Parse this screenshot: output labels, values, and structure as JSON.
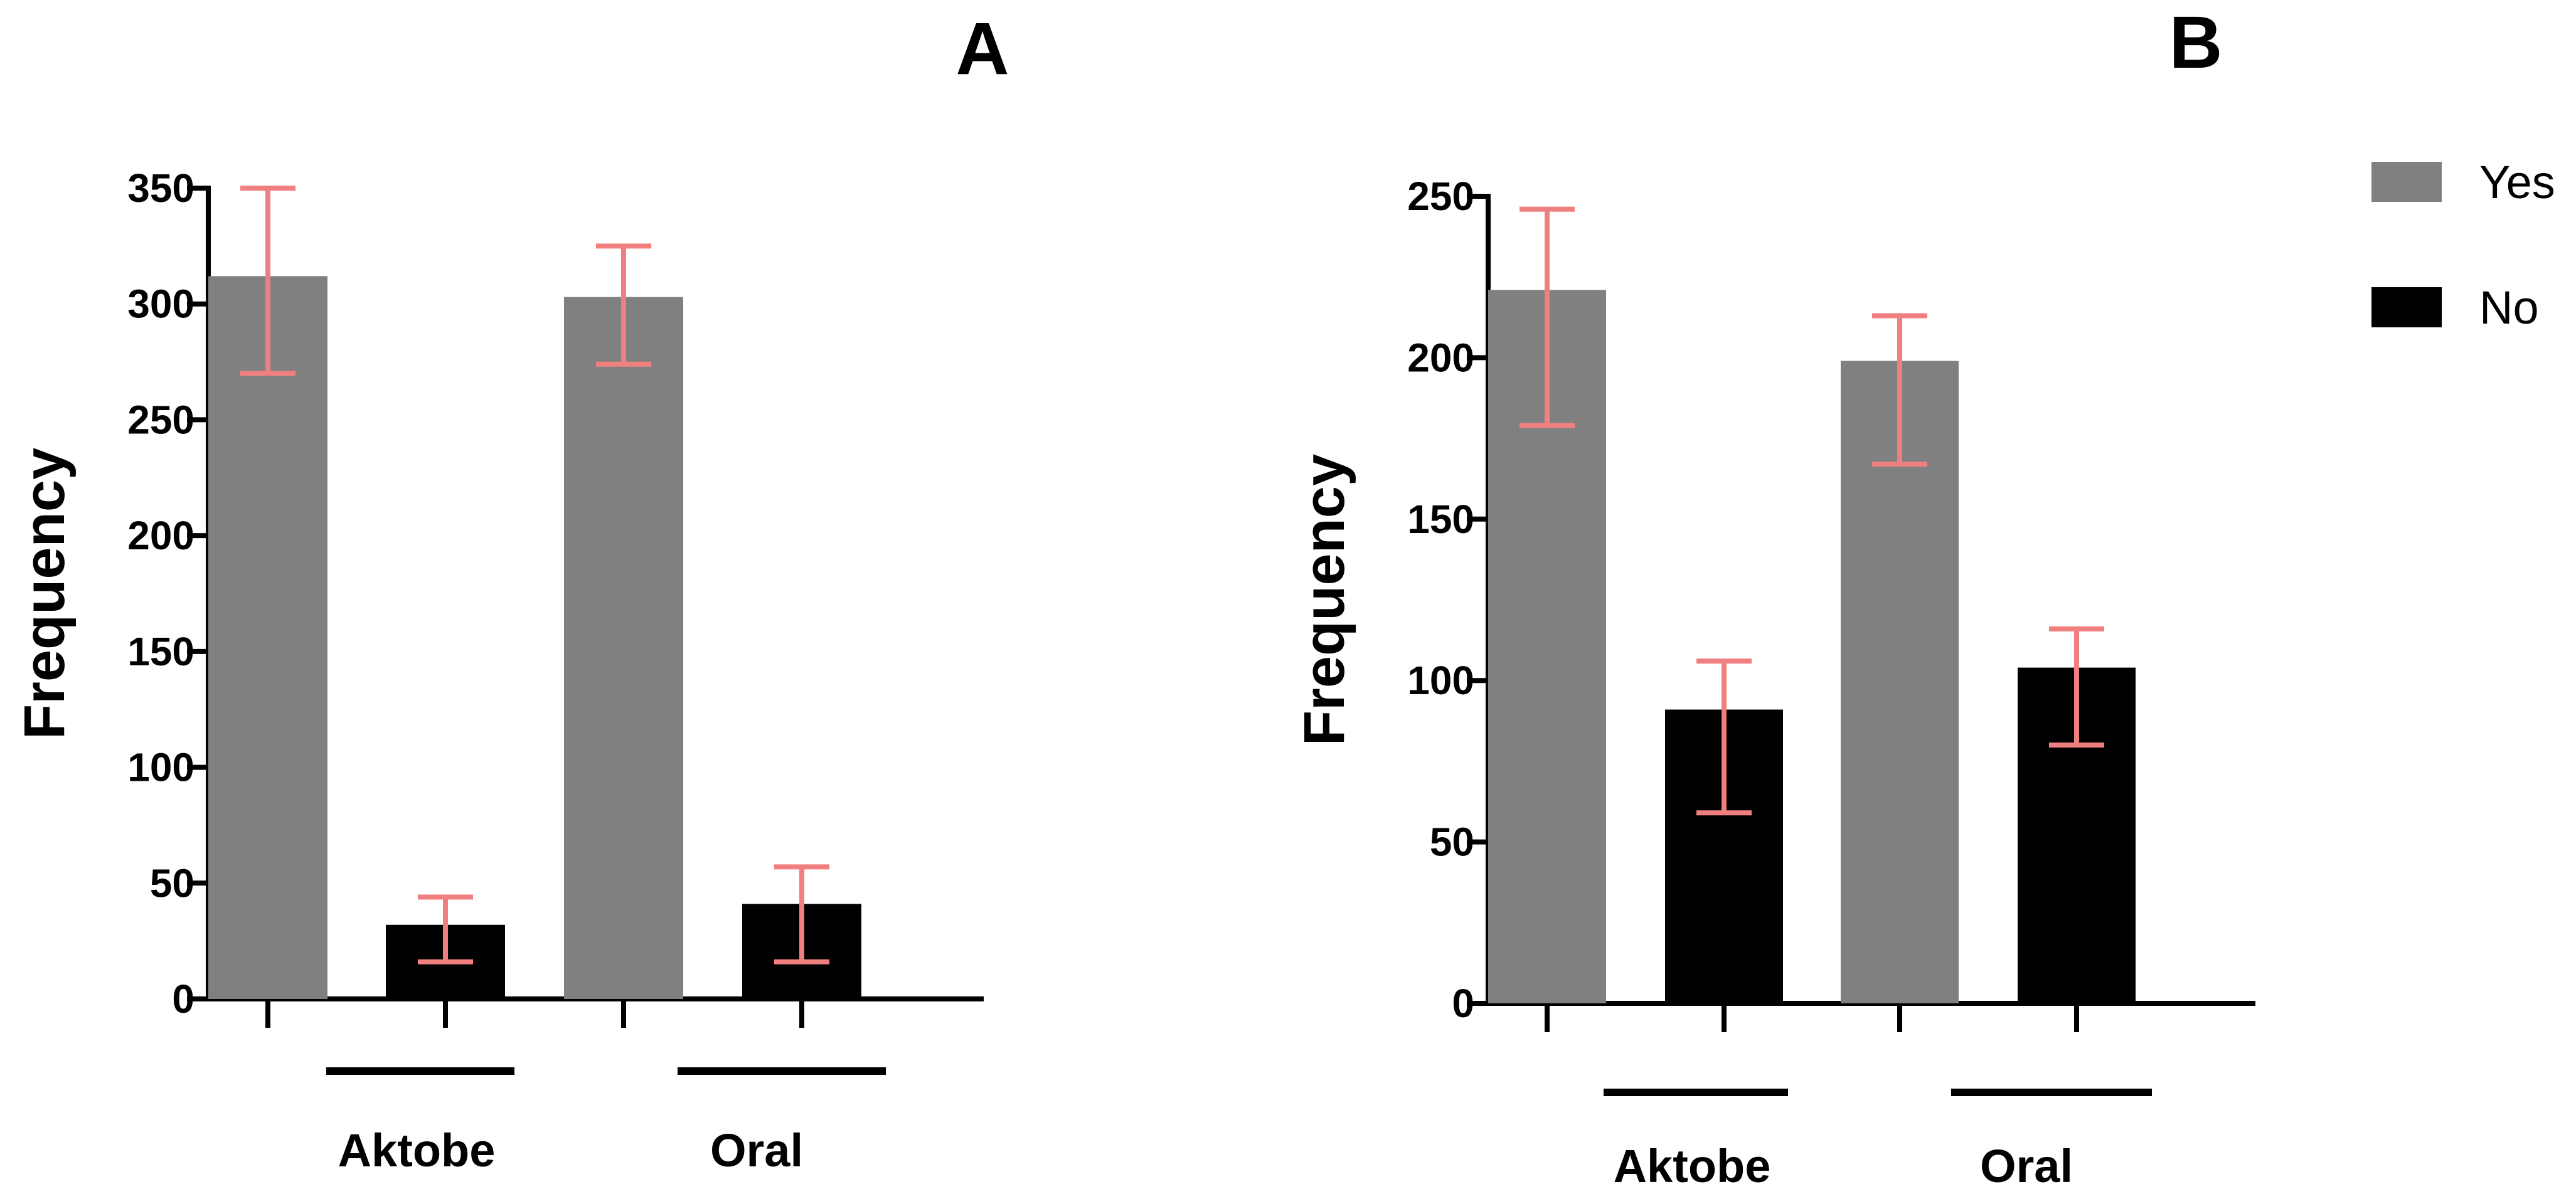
{
  "legend": [
    {
      "label": "Yes",
      "color": "#808080"
    },
    {
      "label": "No",
      "color": "#000000"
    }
  ],
  "chart_data": [
    {
      "type": "bar",
      "panel": "A",
      "title": "A",
      "ylabel": "Frequency",
      "xlabel": "",
      "ylim": [
        0,
        350
      ],
      "yticks": [
        0,
        50,
        100,
        150,
        200,
        250,
        300,
        350
      ],
      "groups": [
        "Aktobe",
        "Oral"
      ],
      "series": [
        {
          "name": "Yes",
          "color": "#808080",
          "values": [
            312,
            303
          ],
          "err_low": [
            270,
            274
          ],
          "err_high": [
            350,
            325
          ]
        },
        {
          "name": "No",
          "color": "#000000",
          "values": [
            32,
            41
          ],
          "err_low": [
            16,
            16
          ],
          "err_high": [
            44,
            57
          ]
        }
      ],
      "error_bar_color": "#f08080",
      "grid": false
    },
    {
      "type": "bar",
      "panel": "B",
      "title": "B",
      "ylabel": "Frequency",
      "xlabel": "",
      "ylim": [
        0,
        250
      ],
      "yticks": [
        0,
        50,
        100,
        150,
        200,
        250
      ],
      "groups": [
        "Aktobe",
        "Oral"
      ],
      "series": [
        {
          "name": "Yes",
          "color": "#808080",
          "values": [
            221,
            199
          ],
          "err_low": [
            179,
            167
          ],
          "err_high": [
            246,
            213
          ]
        },
        {
          "name": "No",
          "color": "#000000",
          "values": [
            91,
            104
          ],
          "err_low": [
            59,
            80
          ],
          "err_high": [
            106,
            116
          ]
        }
      ],
      "error_bar_color": "#f08080",
      "grid": false
    }
  ]
}
